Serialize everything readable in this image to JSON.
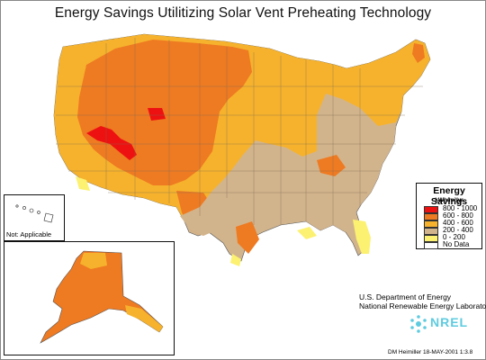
{
  "title": "Energy Savings Utilitizing Solar Vent Preheating Technology",
  "colors": {
    "red": "#ee1111",
    "orange": "#ee7a22",
    "gold": "#f6b22c",
    "tan": "#d2b48c",
    "yellow": "#fcf170",
    "white": "#ffffff",
    "nrel_blue": "#5ecbe0"
  },
  "legend": {
    "title": "Energy Savings",
    "units": "kWh/m²/yr",
    "classes": [
      {
        "label": "800 - 1000",
        "color": "#ee1111"
      },
      {
        "label": "600 - 800",
        "color": "#ee7a22"
      },
      {
        "label": "400 - 600",
        "color": "#f6b22c"
      },
      {
        "label": "200 - 400",
        "color": "#d2b48c"
      },
      {
        "label": "0 - 200",
        "color": "#fcf170"
      },
      {
        "label": "No Data",
        "color": "#ffffff"
      }
    ]
  },
  "inset_hawaii": {
    "label": "Not: Applicable"
  },
  "agency": {
    "line1": "U.S. Department of Energy",
    "line2": "National Renewable Energy Laboratory"
  },
  "logo_text": "NREL",
  "credit": "DM Heimiller 18-MAY-2001 1:3.8"
}
